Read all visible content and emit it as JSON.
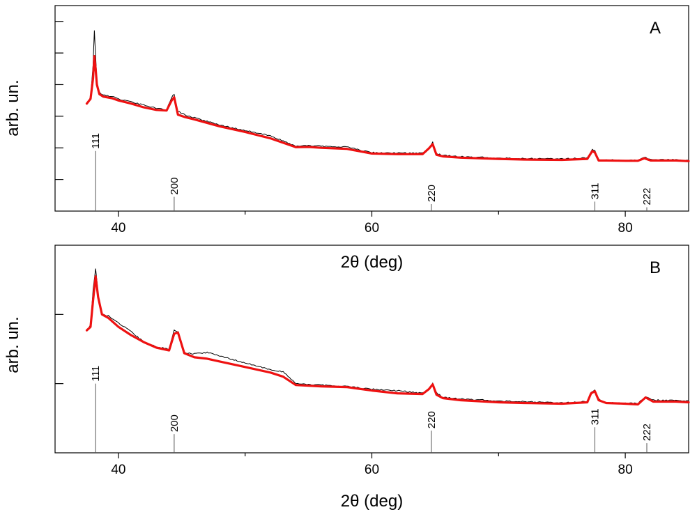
{
  "chart_data": [
    {
      "type": "line",
      "panel_label": "A",
      "xlabel": "2θ (deg)",
      "ylabel": "arb. un.",
      "xlim": [
        35,
        85
      ],
      "ylim": [
        0,
        6.5
      ],
      "x_ticks": [
        40,
        60,
        80
      ],
      "x_minor_ticks": [
        50,
        70
      ],
      "y_ticks": [
        1,
        2,
        3,
        4,
        5,
        6
      ],
      "grid": false,
      "series": [
        {
          "color": "#000000",
          "style": "thin-noisy",
          "x": [
            37.5,
            37.8,
            38.0,
            38.1,
            38.2,
            38.3,
            38.5,
            38.8,
            39.5,
            40,
            41,
            42,
            43,
            43.8,
            44.2,
            44.4,
            44.7,
            45.2,
            46,
            48,
            50,
            52,
            54,
            55,
            56,
            58,
            60,
            62,
            64,
            64.5,
            64.8,
            65.1,
            65.6,
            67,
            70,
            72,
            75,
            77,
            77.4,
            77.6,
            77.9,
            78.5,
            80,
            81,
            81.5,
            82,
            84,
            85
          ],
          "y": [
            3.4,
            3.6,
            4.6,
            5.7,
            4.9,
            4.1,
            3.75,
            3.68,
            3.62,
            3.55,
            3.45,
            3.35,
            3.25,
            3.2,
            3.6,
            3.7,
            3.15,
            3.05,
            2.95,
            2.72,
            2.55,
            2.38,
            2.05,
            2.08,
            2.05,
            2.03,
            1.85,
            1.84,
            1.83,
            2.0,
            2.17,
            1.82,
            1.76,
            1.72,
            1.68,
            1.66,
            1.65,
            1.68,
            1.95,
            1.9,
            1.62,
            1.62,
            1.6,
            1.6,
            1.7,
            1.63,
            1.63,
            1.6
          ]
        },
        {
          "color": "#ee1111",
          "style": "thick-smooth",
          "x": [
            37.5,
            37.8,
            38.0,
            38.1,
            38.2,
            38.3,
            38.5,
            38.8,
            39.5,
            40,
            41,
            42,
            43,
            43.8,
            44.2,
            44.4,
            44.7,
            45.2,
            46,
            48,
            50,
            52,
            54,
            55,
            56,
            58,
            60,
            62,
            64,
            64.5,
            64.8,
            65.1,
            65.6,
            67,
            70,
            72,
            75,
            77,
            77.4,
            77.6,
            77.9,
            78.5,
            80,
            81,
            81.5,
            82,
            84,
            85
          ],
          "y": [
            3.4,
            3.55,
            4.2,
            4.9,
            4.5,
            4.0,
            3.7,
            3.62,
            3.57,
            3.5,
            3.4,
            3.28,
            3.2,
            3.18,
            3.5,
            3.6,
            3.05,
            2.98,
            2.9,
            2.68,
            2.5,
            2.3,
            2.02,
            2.03,
            2.0,
            1.97,
            1.82,
            1.8,
            1.8,
            1.98,
            2.12,
            1.78,
            1.73,
            1.69,
            1.65,
            1.63,
            1.62,
            1.65,
            1.9,
            1.85,
            1.6,
            1.6,
            1.59,
            1.59,
            1.67,
            1.6,
            1.6,
            1.58
          ]
        }
      ],
      "reflections": [
        {
          "x": 38.2,
          "height": 1.9,
          "label": "111"
        },
        {
          "x": 44.4,
          "height": 0.45,
          "label": "200"
        },
        {
          "x": 64.7,
          "height": 0.22,
          "label": "220"
        },
        {
          "x": 77.6,
          "height": 0.3,
          "label": "311"
        },
        {
          "x": 81.7,
          "height": 0.12,
          "label": "222"
        }
      ]
    },
    {
      "type": "line",
      "panel_label": "B",
      "xlabel": "2θ (deg)",
      "ylabel": "arb. un.",
      "xlim": [
        35,
        85
      ],
      "ylim": [
        0,
        3.0
      ],
      "x_ticks": [
        40,
        60,
        80
      ],
      "x_minor_ticks": [
        50,
        70
      ],
      "y_ticks": [
        1,
        2
      ],
      "grid": false,
      "series": [
        {
          "color": "#000000",
          "style": "thin-noisy",
          "x": [
            37.5,
            37.8,
            38.0,
            38.2,
            38.4,
            38.7,
            39.2,
            40,
            41,
            42,
            43,
            44,
            44.4,
            44.7,
            45.2,
            46,
            47,
            48,
            50,
            52,
            53,
            54,
            56,
            58,
            60,
            62,
            64,
            64.5,
            64.8,
            65.1,
            65.6,
            67,
            70,
            72,
            75,
            77,
            77.3,
            77.6,
            77.9,
            78.5,
            80,
            81,
            81.6,
            82.2,
            84,
            85
          ],
          "y": [
            1.77,
            1.85,
            2.35,
            2.66,
            2.3,
            2.0,
            1.98,
            1.88,
            1.75,
            1.6,
            1.53,
            1.5,
            1.78,
            1.75,
            1.45,
            1.43,
            1.45,
            1.4,
            1.3,
            1.2,
            1.17,
            1.0,
            0.98,
            0.96,
            0.92,
            0.9,
            0.86,
            0.93,
            1.0,
            0.87,
            0.8,
            0.78,
            0.75,
            0.74,
            0.72,
            0.74,
            0.88,
            0.9,
            0.78,
            0.72,
            0.72,
            0.71,
            0.81,
            0.76,
            0.76,
            0.75
          ]
        },
        {
          "color": "#ee1111",
          "style": "thick-smooth",
          "x": [
            37.5,
            37.8,
            38.0,
            38.2,
            38.4,
            38.7,
            39.2,
            40,
            41,
            42,
            43,
            44,
            44.4,
            44.7,
            45.2,
            46,
            47,
            48,
            50,
            52,
            53,
            54,
            56,
            58,
            60,
            62,
            64,
            64.5,
            64.8,
            65.1,
            65.6,
            67,
            70,
            72,
            75,
            77,
            77.3,
            77.6,
            77.9,
            78.5,
            80,
            81,
            81.6,
            82.2,
            84,
            85
          ],
          "y": [
            1.77,
            1.82,
            2.2,
            2.55,
            2.25,
            2.0,
            1.95,
            1.82,
            1.7,
            1.6,
            1.52,
            1.48,
            1.72,
            1.74,
            1.44,
            1.38,
            1.36,
            1.32,
            1.24,
            1.16,
            1.1,
            0.98,
            0.96,
            0.95,
            0.9,
            0.86,
            0.85,
            0.92,
            0.99,
            0.84,
            0.79,
            0.76,
            0.73,
            0.72,
            0.71,
            0.73,
            0.86,
            0.89,
            0.76,
            0.72,
            0.71,
            0.7,
            0.8,
            0.74,
            0.74,
            0.73
          ]
        }
      ],
      "reflections": [
        {
          "x": 38.2,
          "height": 1.0,
          "label": "111"
        },
        {
          "x": 44.4,
          "height": 0.27,
          "label": "200"
        },
        {
          "x": 64.7,
          "height": 0.32,
          "label": "220"
        },
        {
          "x": 77.6,
          "height": 0.37,
          "label": "311"
        },
        {
          "x": 81.7,
          "height": 0.14,
          "label": "222"
        }
      ]
    }
  ]
}
